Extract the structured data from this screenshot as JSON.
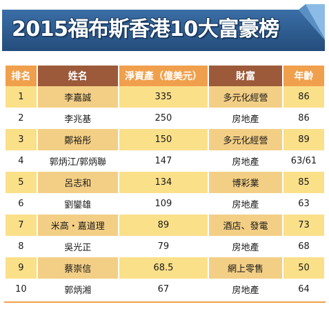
{
  "title": "2015福布斯香港10大富豪榜",
  "colors": {
    "banner_blue": "#2c5b8f",
    "banner_light": "#7fb2e2",
    "header_orange": "#f0a04c",
    "header_brown": "#9c5a3a",
    "stripe_yellow": "#fbe08a",
    "stripe_tan": "#f3cf85"
  },
  "table": {
    "headers": {
      "rank": "排名",
      "name": "姓名",
      "net_worth": "淨資產（億美元）",
      "source": "財富",
      "age": "年齡"
    },
    "rows": [
      {
        "rank": "1",
        "name": "李嘉誠",
        "net_worth": "335",
        "source": "多元化經營",
        "age": "86"
      },
      {
        "rank": "2",
        "name": "李兆基",
        "net_worth": "250",
        "source": "房地產",
        "age": "86"
      },
      {
        "rank": "3",
        "name": "鄭裕彤",
        "net_worth": "150",
        "source": "多元化經營",
        "age": "89"
      },
      {
        "rank": "4",
        "name": "郭炳江/郭炳聯",
        "net_worth": "147",
        "source": "房地產",
        "age": "63/61"
      },
      {
        "rank": "5",
        "name": "呂志和",
        "net_worth": "134",
        "source": "博彩業",
        "age": "85"
      },
      {
        "rank": "6",
        "name": "劉鑾雄",
        "net_worth": "109",
        "source": "房地產",
        "age": "63"
      },
      {
        "rank": "7",
        "name": "米高・嘉道理",
        "net_worth": "89",
        "source": "酒店、發電",
        "age": "73"
      },
      {
        "rank": "8",
        "name": "吳光正",
        "net_worth": "79",
        "source": "房地產",
        "age": "68"
      },
      {
        "rank": "9",
        "name": "蔡崇信",
        "net_worth": "68.5",
        "source": "網上零售",
        "age": "50"
      },
      {
        "rank": "10",
        "name": "郭炳湘",
        "net_worth": "67",
        "source": "房地產",
        "age": "64"
      }
    ]
  }
}
